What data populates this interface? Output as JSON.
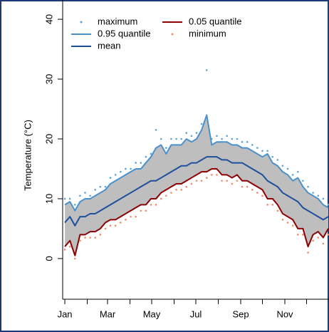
{
  "chart_data": {
    "type": "line",
    "ylabel": "Temperature (°C)",
    "x": [
      1,
      8,
      15,
      22,
      29,
      36,
      43,
      50,
      57,
      64,
      71,
      78,
      85,
      92,
      99,
      106,
      113,
      120,
      127,
      134,
      141,
      148,
      155,
      162,
      169,
      176,
      183,
      190,
      197,
      204,
      211,
      218,
      225,
      232,
      239,
      246,
      253,
      260,
      267,
      274,
      281,
      288,
      295,
      302,
      309,
      316,
      323,
      330,
      337,
      344,
      351,
      358,
      365
    ],
    "series": [
      {
        "name": "maximum",
        "style": "points",
        "color": "#5ba3d9",
        "values": [
          10,
          10,
          9,
          10.5,
          11,
          10.5,
          11.5,
          12,
          12,
          13.5,
          14,
          14.5,
          15,
          15,
          16,
          16,
          17,
          17.5,
          21.5,
          20,
          18.5,
          20,
          20,
          20,
          21,
          20.5,
          21,
          22.5,
          31.5,
          20,
          20.5,
          20,
          20.5,
          20,
          20,
          19.5,
          19.5,
          19,
          18.5,
          18,
          18,
          17,
          16.5,
          15.5,
          15,
          14,
          14.5,
          13,
          12,
          11,
          10.5,
          10,
          9
        ]
      },
      {
        "name": "0.95 quantile",
        "style": "line",
        "color": "#4a90cc",
        "values": [
          9,
          9.5,
          8,
          9.5,
          10,
          10,
          10.5,
          11,
          11.5,
          12.5,
          13,
          13.5,
          14,
          14.5,
          15,
          15,
          16,
          17,
          18.5,
          19,
          17.5,
          19,
          19,
          19,
          20,
          19.5,
          20,
          21.5,
          24,
          19,
          19.5,
          19.5,
          19.5,
          19,
          19,
          18.5,
          18.5,
          18,
          17.5,
          17,
          17.5,
          16,
          15.5,
          14.5,
          14,
          13,
          13.5,
          12,
          11,
          10.5,
          10,
          9,
          8.5
        ]
      },
      {
        "name": "mean",
        "style": "line",
        "color": "#1e4f9c",
        "values": [
          6,
          7,
          5.5,
          7,
          7,
          7.5,
          7.5,
          8,
          8.5,
          9,
          9.5,
          10,
          10.5,
          11,
          11.5,
          12,
          12.5,
          13,
          13,
          13.5,
          14,
          14.5,
          15,
          15.5,
          15.5,
          16,
          16,
          16.5,
          17,
          17,
          17,
          16.5,
          16.5,
          16,
          16,
          16,
          15.5,
          15,
          14.5,
          14,
          13,
          12.5,
          12,
          11,
          10.5,
          10,
          9.5,
          8.5,
          8,
          7.5,
          7,
          6.5,
          7
        ]
      },
      {
        "name": "0.05 quantile",
        "style": "line",
        "color": "#8b0000",
        "values": [
          2,
          3,
          0.5,
          4,
          4,
          4.5,
          4.5,
          5,
          6,
          6.5,
          6.5,
          7,
          7.5,
          8,
          8.5,
          9,
          9,
          10,
          10,
          11,
          11.5,
          12,
          12.5,
          12.5,
          13,
          13.5,
          14,
          14.5,
          14.5,
          15,
          15,
          14,
          14,
          13.5,
          14,
          13,
          13,
          12.5,
          12,
          11.5,
          10,
          10,
          9,
          7.5,
          7,
          6.5,
          5,
          5,
          2,
          4,
          4.5,
          3.5,
          5
        ]
      },
      {
        "name": "minimum",
        "style": "points",
        "color": "#f08a6c",
        "values": [
          1.5,
          2,
          0,
          3,
          3.5,
          3.5,
          3.5,
          4,
          5,
          5.5,
          5.5,
          6,
          6.5,
          7,
          7,
          8,
          8,
          9,
          9,
          10,
          10.5,
          11,
          11.5,
          11.5,
          12,
          12.5,
          13,
          13,
          13.5,
          14,
          14,
          13,
          13,
          12.5,
          13,
          12,
          12,
          11.5,
          11,
          10.5,
          9,
          9,
          8,
          6.5,
          6,
          5.5,
          4,
          4,
          1,
          3,
          3.5,
          2.5,
          4
        ]
      }
    ],
    "band_between": [
      1,
      3
    ],
    "band_color": "#bebebe",
    "xlim": [
      -2,
      366
    ],
    "xticks": [
      {
        "value": 1,
        "label": "Jan"
      },
      {
        "value": 60,
        "label": "Mar"
      },
      {
        "value": 121,
        "label": "May"
      },
      {
        "value": 182,
        "label": "Jul"
      },
      {
        "value": 244,
        "label": "Sep"
      },
      {
        "value": 305,
        "label": "Nov"
      }
    ],
    "xminorticks": [
      32,
      91,
      152,
      213,
      274,
      335
    ],
    "ylim": [
      -6.8,
      41.2
    ],
    "yticks": [
      0,
      10,
      20,
      30,
      40
    ],
    "legend": "top-left"
  }
}
